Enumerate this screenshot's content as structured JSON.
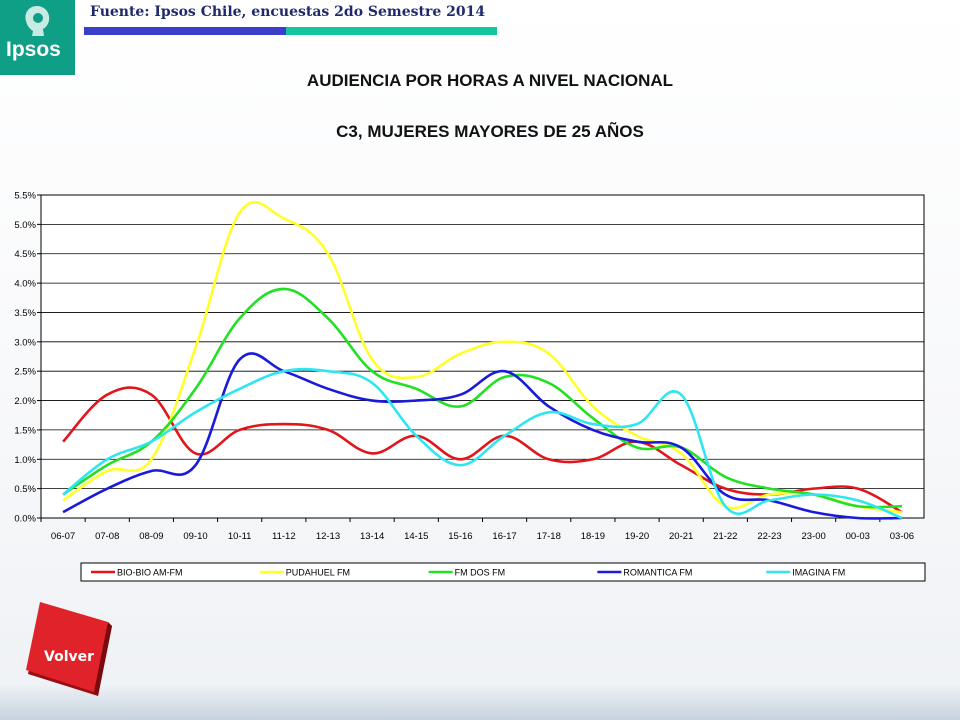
{
  "header": {
    "logo_text": "Ipsos",
    "source": "Fuente: Ipsos Chile, encuestas 2do Semestre 2014"
  },
  "titles": {
    "line1": "AUDIENCIA POR HORAS A NIVEL NACIONAL",
    "line2": "C3, MUJERES MAYORES DE 25 AÑOS"
  },
  "chart_data": {
    "type": "line",
    "title": "",
    "xlabel": "",
    "ylabel": "",
    "ylim": [
      0,
      5.5
    ],
    "yticks": [
      "0.0%",
      "0.5%",
      "1.0%",
      "1.5%",
      "2.0%",
      "2.5%",
      "3.0%",
      "3.5%",
      "4.0%",
      "4.5%",
      "5.0%",
      "5.5%"
    ],
    "grid": "horizontal",
    "legend_position": "bottom",
    "categories": [
      "06-07",
      "07-08",
      "08-09",
      "09-10",
      "10-11",
      "11-12",
      "12-13",
      "13-14",
      "14-15",
      "15-16",
      "16-17",
      "17-18",
      "18-19",
      "19-20",
      "20-21",
      "21-22",
      "22-23",
      "23-00",
      "00-03",
      "03-06"
    ],
    "series": [
      {
        "name": "BIO-BIO AM-FM",
        "color": "#e0161c",
        "values": [
          1.3,
          2.1,
          2.1,
          1.1,
          1.5,
          1.6,
          1.5,
          1.1,
          1.4,
          1.0,
          1.4,
          1.0,
          1.0,
          1.3,
          0.9,
          0.5,
          0.4,
          0.5,
          0.5,
          0.1
        ]
      },
      {
        "name": "PUDAHUEL FM",
        "color": "#ffff2b",
        "values": [
          0.3,
          0.8,
          1.0,
          2.9,
          5.2,
          5.1,
          4.5,
          2.7,
          2.4,
          2.8,
          3.0,
          2.8,
          1.9,
          1.4,
          1.1,
          0.2,
          0.4,
          0.4,
          0.2,
          0.1
        ]
      },
      {
        "name": "FM DOS FM",
        "color": "#22e022",
        "values": [
          0.4,
          0.9,
          1.3,
          2.2,
          3.4,
          3.9,
          3.4,
          2.5,
          2.2,
          1.9,
          2.4,
          2.3,
          1.7,
          1.2,
          1.2,
          0.7,
          0.5,
          0.4,
          0.2,
          0.2
        ]
      },
      {
        "name": "ROMANTICA FM",
        "color": "#1a1adb",
        "values": [
          0.1,
          0.5,
          0.8,
          0.9,
          2.7,
          2.5,
          2.2,
          2.0,
          2.0,
          2.1,
          2.5,
          1.9,
          1.5,
          1.3,
          1.2,
          0.4,
          0.3,
          0.1,
          0.0,
          0.0
        ]
      },
      {
        "name": "IMAGINA FM",
        "color": "#2ee6f0",
        "values": [
          0.4,
          1.0,
          1.3,
          1.8,
          2.2,
          2.5,
          2.5,
          2.3,
          1.4,
          0.9,
          1.4,
          1.8,
          1.6,
          1.6,
          2.1,
          0.2,
          0.3,
          0.4,
          0.3,
          0.0
        ]
      }
    ]
  },
  "nav": {
    "back_label": "Volver"
  }
}
